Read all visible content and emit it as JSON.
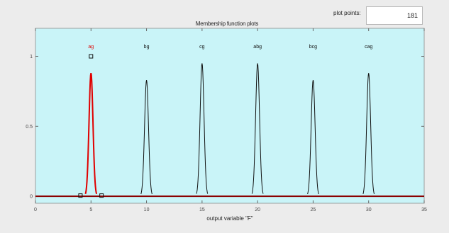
{
  "plot_title": "Membership function plots",
  "plot_points": {
    "label": "plot points:",
    "value": "181"
  },
  "colors": {
    "axes_background": "#c9f4f8",
    "selected_mf": "#e00000",
    "mf": "#111111",
    "baseline": "#8a0000"
  },
  "chart_data": {
    "type": "line",
    "xlabel": "output variable \"F\"",
    "xlim": [
      0,
      35
    ],
    "ylim": [
      -0.05,
      1.2
    ],
    "x_ticks": [
      "0",
      "5",
      "10",
      "15",
      "20",
      "25",
      "30",
      "35"
    ],
    "y_ticks": [
      "0",
      "0.5",
      "1"
    ],
    "membership_functions": [
      {
        "name": "ag",
        "center": 5,
        "peak": 0.88,
        "half_width": 0.5,
        "selected": true
      },
      {
        "name": "bg",
        "center": 10,
        "peak": 0.83,
        "half_width": 0.5,
        "selected": false
      },
      {
        "name": "cg",
        "center": 15,
        "peak": 0.95,
        "half_width": 0.5,
        "selected": false
      },
      {
        "name": "abg",
        "center": 20,
        "peak": 0.95,
        "half_width": 0.5,
        "selected": false
      },
      {
        "name": "bcg",
        "center": 25,
        "peak": 0.83,
        "half_width": 0.5,
        "selected": false
      },
      {
        "name": "cag",
        "center": 30,
        "peak": 0.88,
        "half_width": 0.5,
        "selected": false
      }
    ]
  }
}
